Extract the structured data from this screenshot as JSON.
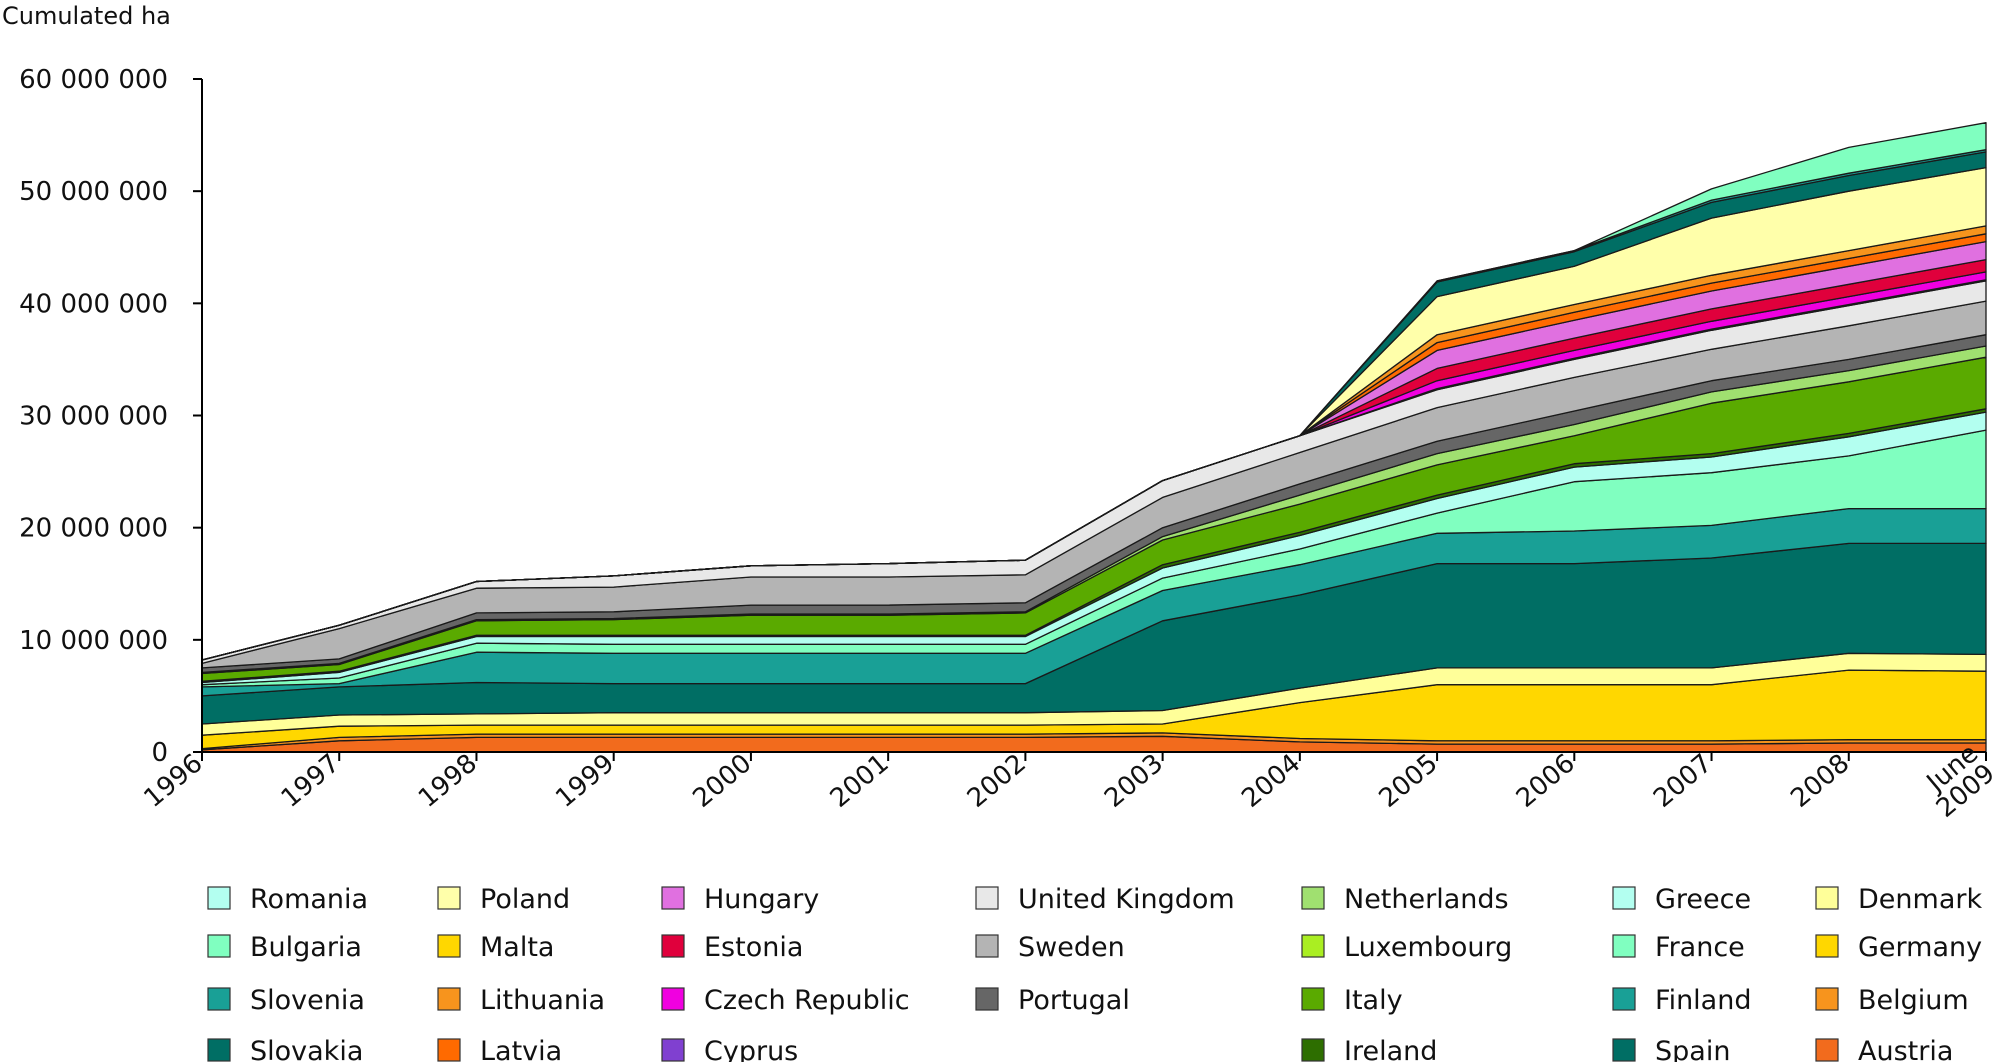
{
  "chart_data": {
    "type": "area",
    "stacked": true,
    "title": "",
    "ylabel": "Cumulated ha",
    "xlabel": "",
    "ylim": [
      0,
      60000000
    ],
    "yticks": [
      0,
      10000000,
      20000000,
      30000000,
      40000000,
      50000000,
      60000000
    ],
    "ytick_labels": [
      "0",
      "10 000 000",
      "20 000 000",
      "30 000 000",
      "40 000 000",
      "50 000 000",
      "60 000 000"
    ],
    "categories": [
      "1996",
      "1997",
      "1998",
      "1999",
      "2000",
      "2001",
      "2002",
      "2003",
      "2004",
      "2005",
      "2006",
      "2007",
      "2008",
      "June 2009"
    ],
    "series": [
      {
        "name": "Austria",
        "color": "#f26b1d",
        "values": [
          200000,
          1000000,
          1300000,
          1300000,
          1300000,
          1300000,
          1300000,
          1400000,
          900000,
          700000,
          700000,
          700000,
          800000,
          800000
        ]
      },
      {
        "name": "Belgium",
        "color": "#f7941d",
        "values": [
          100000,
          300000,
          300000,
          300000,
          300000,
          300000,
          300000,
          300000,
          300000,
          300000,
          300000,
          300000,
          300000,
          300000
        ]
      },
      {
        "name": "Germany",
        "color": "#ffd700",
        "values": [
          1200000,
          1000000,
          800000,
          800000,
          800000,
          800000,
          800000,
          800000,
          3200000,
          5000000,
          5000000,
          5000000,
          6200000,
          6100000
        ]
      },
      {
        "name": "Denmark",
        "color": "#ffff99",
        "values": [
          1000000,
          1000000,
          1000000,
          1100000,
          1100000,
          1100000,
          1100000,
          1200000,
          1300000,
          1500000,
          1500000,
          1500000,
          1500000,
          1500000
        ]
      },
      {
        "name": "Spain",
        "color": "#006e64",
        "values": [
          2500000,
          2500000,
          2800000,
          2600000,
          2600000,
          2600000,
          2600000,
          8000000,
          8300000,
          9300000,
          9300000,
          9800000,
          9800000,
          9900000
        ]
      },
      {
        "name": "Finland",
        "color": "#19a096",
        "values": [
          800000,
          300000,
          2700000,
          2700000,
          2700000,
          2700000,
          2700000,
          2700000,
          2700000,
          2700000,
          2900000,
          2900000,
          3100000,
          3100000
        ]
      },
      {
        "name": "France",
        "color": "#80ffc0",
        "values": [
          200000,
          500000,
          800000,
          800000,
          800000,
          800000,
          800000,
          1100000,
          1400000,
          1800000,
          4400000,
          4700000,
          4700000,
          7000000
        ]
      },
      {
        "name": "Greece",
        "color": "#b3fff0",
        "values": [
          200000,
          500000,
          600000,
          700000,
          700000,
          700000,
          700000,
          900000,
          1200000,
          1300000,
          1300000,
          1400000,
          1700000,
          1600000
        ]
      },
      {
        "name": "Ireland",
        "color": "#2d6e00",
        "values": [
          100000,
          100000,
          100000,
          100000,
          100000,
          100000,
          100000,
          300000,
          300000,
          300000,
          300000,
          300000,
          300000,
          300000
        ]
      },
      {
        "name": "Italy",
        "color": "#5aaa00",
        "values": [
          700000,
          600000,
          1300000,
          1400000,
          1800000,
          1800000,
          2000000,
          2200000,
          2500000,
          2700000,
          2500000,
          4500000,
          4600000,
          4600000
        ]
      },
      {
        "name": "Luxembourg",
        "color": "#aaee22",
        "values": [
          0,
          0,
          0,
          0,
          0,
          0,
          0,
          0,
          0,
          0,
          0,
          0,
          0,
          0
        ]
      },
      {
        "name": "Netherlands",
        "color": "#a0e070",
        "values": [
          100000,
          100000,
          100000,
          100000,
          100000,
          100000,
          100000,
          300000,
          800000,
          1000000,
          1000000,
          1000000,
          1000000,
          1000000
        ]
      },
      {
        "name": "Portugal",
        "color": "#666666",
        "values": [
          400000,
          400000,
          600000,
          600000,
          800000,
          800000,
          800000,
          800000,
          1000000,
          1100000,
          1200000,
          1000000,
          1000000,
          1000000
        ]
      },
      {
        "name": "Sweden",
        "color": "#b4b4b4",
        "values": [
          400000,
          2700000,
          2200000,
          2200000,
          2500000,
          2500000,
          2500000,
          2700000,
          2800000,
          3000000,
          3000000,
          2800000,
          3000000,
          3000000
        ]
      },
      {
        "name": "United Kingdom",
        "color": "#e8e8e8",
        "values": [
          300000,
          300000,
          600000,
          1000000,
          1000000,
          1200000,
          1300000,
          1500000,
          1500000,
          1600000,
          1600000,
          1700000,
          1800000,
          1800000
        ]
      },
      {
        "name": "Cyprus",
        "color": "#8040d0",
        "values": [
          0,
          0,
          0,
          0,
          0,
          0,
          0,
          0,
          0,
          100000,
          100000,
          100000,
          100000,
          100000
        ]
      },
      {
        "name": "Czech Republic",
        "color": "#f000e0",
        "values": [
          0,
          0,
          0,
          0,
          0,
          0,
          0,
          0,
          0,
          700000,
          700000,
          700000,
          700000,
          700000
        ]
      },
      {
        "name": "Estonia",
        "color": "#e0003c",
        "values": [
          0,
          0,
          0,
          0,
          0,
          0,
          0,
          0,
          0,
          1100000,
          1100000,
          1100000,
          1100000,
          1100000
        ]
      },
      {
        "name": "Hungary",
        "color": "#e070e0",
        "values": [
          0,
          0,
          0,
          0,
          0,
          0,
          0,
          0,
          0,
          1600000,
          1600000,
          1600000,
          1600000,
          1600000
        ]
      },
      {
        "name": "Latvia",
        "color": "#ff6a00",
        "values": [
          0,
          0,
          0,
          0,
          0,
          0,
          0,
          0,
          0,
          700000,
          700000,
          700000,
          700000,
          700000
        ]
      },
      {
        "name": "Lithuania",
        "color": "#f7941d",
        "values": [
          0,
          0,
          0,
          0,
          0,
          0,
          0,
          0,
          0,
          700000,
          700000,
          700000,
          700000,
          700000
        ]
      },
      {
        "name": "Malta",
        "color": "#ffd700",
        "values": [
          0,
          0,
          0,
          0,
          0,
          0,
          0,
          0,
          0,
          0,
          0,
          0,
          0,
          0
        ]
      },
      {
        "name": "Poland",
        "color": "#ffffaa",
        "values": [
          0,
          0,
          0,
          0,
          0,
          0,
          0,
          0,
          0,
          3400000,
          3400000,
          5100000,
          5300000,
          5200000
        ]
      },
      {
        "name": "Slovakia",
        "color": "#006e64",
        "values": [
          0,
          0,
          0,
          0,
          0,
          0,
          0,
          0,
          0,
          1300000,
          1300000,
          1400000,
          1400000,
          1400000
        ]
      },
      {
        "name": "Slovenia",
        "color": "#19a096",
        "values": [
          0,
          0,
          0,
          0,
          0,
          0,
          0,
          0,
          0,
          100000,
          100000,
          200000,
          200000,
          200000
        ]
      },
      {
        "name": "Bulgaria",
        "color": "#80ffc0",
        "values": [
          0,
          0,
          0,
          0,
          0,
          0,
          0,
          0,
          0,
          0,
          0,
          1000000,
          2300000,
          2400000
        ]
      },
      {
        "name": "Romania",
        "color": "#b3fff0",
        "values": [
          0,
          0,
          0,
          0,
          0,
          0,
          0,
          0,
          0,
          0,
          0,
          0,
          0,
          0
        ]
      }
    ],
    "legend": {
      "placement": "bottom",
      "columns": [
        [
          "Romania",
          "Bulgaria",
          "Slovenia",
          "Slovakia"
        ],
        [
          "Poland",
          "Malta",
          "Lithuania",
          "Latvia"
        ],
        [
          "Hungary",
          "Estonia",
          "Czech Republic",
          "Cyprus"
        ],
        [
          "United Kingdom",
          "Sweden",
          "Portugal"
        ],
        [
          "Netherlands",
          "Luxembourg",
          "Italy",
          "Ireland"
        ],
        [
          "Greece",
          "France",
          "Finland",
          "Spain"
        ],
        [
          "Denmark",
          "Germany",
          "Belgium",
          "Austria"
        ]
      ]
    }
  }
}
